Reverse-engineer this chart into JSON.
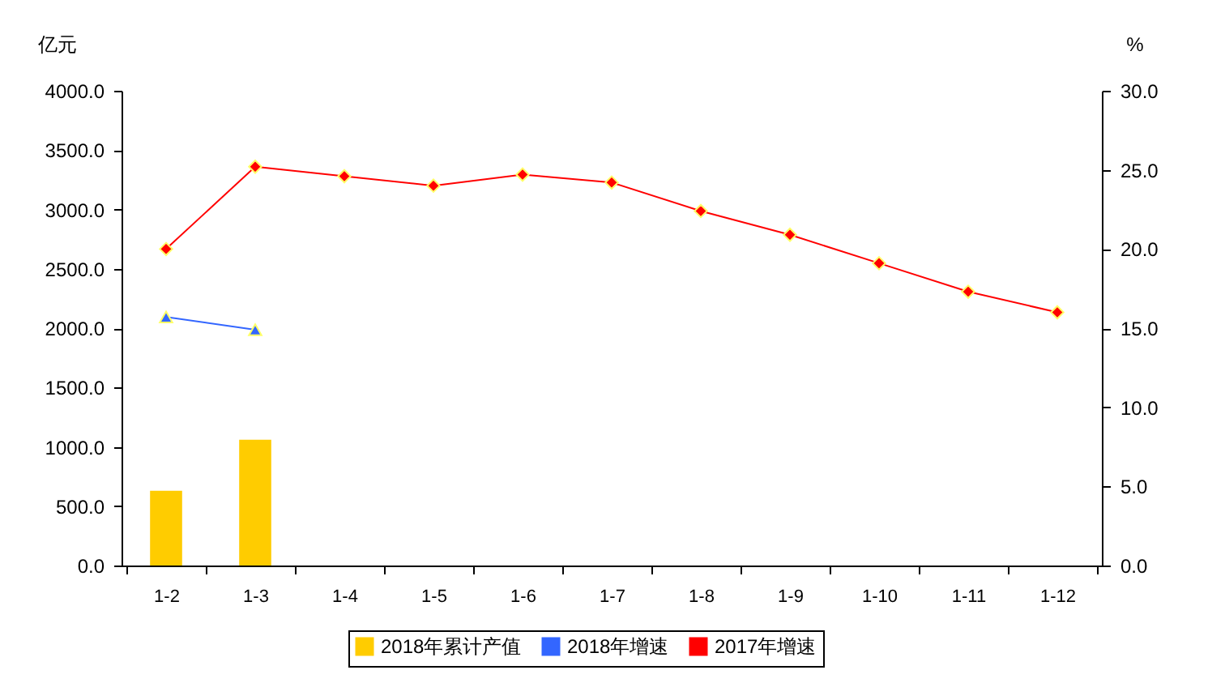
{
  "chart_data": {
    "type": "bar",
    "categories": [
      "1-2",
      "1-3",
      "1-4",
      "1-5",
      "1-6",
      "1-7",
      "1-8",
      "1-9",
      "1-10",
      "1-11",
      "1-12"
    ],
    "ylabel": "亿元",
    "y2label": "%",
    "ylim": [
      0,
      4000
    ],
    "yticks": [
      {
        "value": 0,
        "label": "0.0"
      },
      {
        "value": 500,
        "label": "500.0"
      },
      {
        "value": 1000,
        "label": "1000.0"
      },
      {
        "value": 1500,
        "label": "1500.0"
      },
      {
        "value": 2000,
        "label": "2000.0"
      },
      {
        "value": 2500,
        "label": "2500.0"
      },
      {
        "value": 3000,
        "label": "3000.0"
      },
      {
        "value": 3500,
        "label": "3500.0"
      },
      {
        "value": 4000,
        "label": "4000.0"
      }
    ],
    "y2lim": [
      0,
      30
    ],
    "y2ticks": [
      {
        "value": 0,
        "label": "0.0"
      },
      {
        "value": 5,
        "label": "5.0"
      },
      {
        "value": 10,
        "label": "10.0"
      },
      {
        "value": 15,
        "label": "15.0"
      },
      {
        "value": 20,
        "label": "20.0"
      },
      {
        "value": 25,
        "label": "25.0"
      },
      {
        "value": 30,
        "label": "30.0"
      }
    ],
    "legend": "bottom",
    "series": [
      {
        "name": "2018年累计产值",
        "color": "#ffcc00",
        "values": [
          630,
          1060,
          null,
          null,
          null,
          null,
          null,
          null,
          null,
          null,
          null
        ]
      },
      {
        "name": "2018年增速",
        "type": "line",
        "axis": "y2",
        "marker": "triangle",
        "color": "#3366ff",
        "values": [
          15.7,
          14.9,
          null,
          null,
          null,
          null,
          null,
          null,
          null,
          null,
          null
        ]
      },
      {
        "name": "2017年增速",
        "type": "line",
        "axis": "y2",
        "marker": "diamond",
        "color": "#ff0000",
        "values": [
          20.0,
          25.2,
          24.6,
          24.0,
          24.7,
          24.2,
          22.4,
          20.9,
          19.1,
          17.3,
          16.0
        ]
      }
    ]
  }
}
